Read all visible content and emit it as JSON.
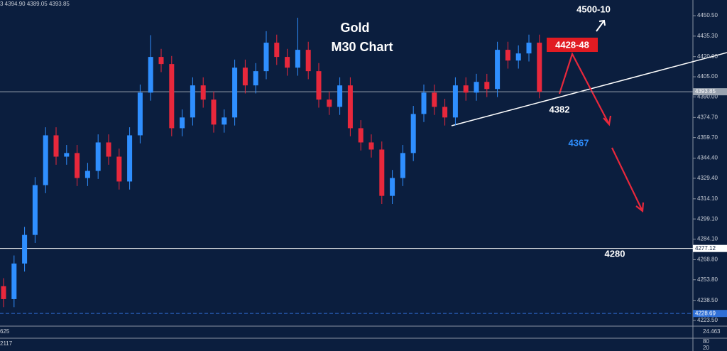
{
  "chart_data": {
    "type": "candlestick",
    "header": "3 4394.90 4389.05 4393.85",
    "title": "Gold",
    "subtitle": "M30 Chart",
    "annotations": [
      "4500-10",
      "4428-48",
      "4382",
      "4367",
      "4280"
    ],
    "up_color": "#2f8fff",
    "down_color": "#e8283c",
    "ylim": [
      4219.26,
      4462.2
    ],
    "yticks": [
      {
        "value": 4450.5,
        "label": "4450.50"
      },
      {
        "value": 4435.3,
        "label": "4435.30"
      },
      {
        "value": 4420,
        "label": "4420.00"
      },
      {
        "value": 4405,
        "label": "4405.00"
      },
      {
        "value": 4390,
        "label": "4390.00"
      },
      {
        "value": 4374.7,
        "label": "4374.70"
      },
      {
        "value": 4359.7,
        "label": "4359.70"
      },
      {
        "value": 4344.4,
        "label": "4344.40"
      },
      {
        "value": 4329.4,
        "label": "4329.40"
      },
      {
        "value": 4314.1,
        "label": "4314.10"
      },
      {
        "value": 4299.1,
        "label": "4299.10"
      },
      {
        "value": 4284.1,
        "label": "4284.10"
      },
      {
        "value": 4268.8,
        "label": "4268.80"
      },
      {
        "value": 4253.8,
        "label": "4253.80"
      },
      {
        "value": 4238.5,
        "label": "4238.50"
      },
      {
        "value": 4223.5,
        "label": "4223.50"
      }
    ],
    "levels": [
      {
        "value": 4393.85,
        "label": "4393.85",
        "color": "#9aa3b0"
      },
      {
        "value": 4277.12,
        "label": "4277.12",
        "color": "#ffffff"
      },
      {
        "value": 4228.69,
        "label": "4228.69",
        "color": "#2f6fd6"
      }
    ],
    "open": [
      4249.0,
      4239.4,
      4265.9,
      4287.2,
      4324.3,
      4361.4,
      4345.5,
      4348.2,
      4329.6,
      4334.9,
      4356.1,
      4345.5,
      4327.0,
      4361.4,
      4393.2,
      4419.8,
      4414.5,
      4366.7,
      4374.7,
      4398.6,
      4388.0,
      4369.4,
      4374.7,
      4411.8,
      4398.6,
      4409.2,
      4430.4,
      4419.8,
      4411.8,
      4425.1,
      4409.2,
      4388.0,
      4382.6,
      4398.6,
      4366.7,
      4356.1,
      4350.8,
      4316.3,
      4329.6,
      4348.2,
      4377.3,
      4393.2,
      4382.6,
      4374.7,
      4398.6,
      4393.2,
      4401.2,
      4395.9,
      4425.1,
      4417.1,
      4422.4,
      4430.4
    ],
    "high": [
      4255.0,
      4271.9,
      4293.2,
      4330.3,
      4367.4,
      4367.4,
      4354.2,
      4354.2,
      4340.9,
      4362.1,
      4362.1,
      4351.5,
      4367.4,
      4399.2,
      4436.0,
      4425.8,
      4420.5,
      4380.7,
      4404.6,
      4404.6,
      4394.0,
      4380.7,
      4417.8,
      4417.8,
      4415.2,
      4439.0,
      4436.4,
      4425.8,
      4449.0,
      4431.1,
      4415.2,
      4394.0,
      4404.6,
      4404.6,
      4372.7,
      4362.1,
      4356.8,
      4335.6,
      4354.2,
      4383.3,
      4399.2,
      4399.2,
      4388.6,
      4404.6,
      4404.6,
      4407.2,
      4407.2,
      4431.1,
      4431.1,
      4428.4,
      4436.4,
      4436.4
    ],
    "low": [
      4233.4,
      4233.4,
      4259.9,
      4281.2,
      4318.3,
      4339.5,
      4339.5,
      4323.6,
      4323.6,
      4328.9,
      4339.5,
      4321.0,
      4321.0,
      4355.4,
      4387.2,
      4408.5,
      4360.7,
      4360.7,
      4368.7,
      4382.0,
      4363.4,
      4363.4,
      4368.7,
      4392.6,
      4392.6,
      4403.2,
      4413.8,
      4405.8,
      4405.8,
      4403.2,
      4382.0,
      4376.6,
      4376.6,
      4360.7,
      4350.1,
      4344.8,
      4310.3,
      4310.3,
      4323.6,
      4342.2,
      4371.3,
      4376.6,
      4368.7,
      4368.7,
      4387.2,
      4387.2,
      4389.9,
      4389.9,
      4411.1,
      4411.1,
      4416.4,
      4389.0
    ],
    "close": [
      4239.4,
      4265.9,
      4287.2,
      4324.3,
      4361.4,
      4345.5,
      4348.2,
      4329.6,
      4334.9,
      4356.1,
      4345.5,
      4327.0,
      4361.4,
      4393.2,
      4419.8,
      4414.5,
      4366.7,
      4374.7,
      4398.6,
      4388.0,
      4369.4,
      4374.7,
      4411.8,
      4398.6,
      4409.2,
      4430.4,
      4419.8,
      4411.8,
      4425.1,
      4409.2,
      4388.0,
      4382.6,
      4398.6,
      4366.7,
      4356.1,
      4350.8,
      4316.3,
      4329.6,
      4348.2,
      4377.3,
      4393.2,
      4382.6,
      4374.7,
      4398.6,
      4393.2,
      4401.2,
      4395.9,
      4425.1,
      4417.1,
      4422.4,
      4430.4,
      4393.8
    ],
    "indicator_labels": [
      "625",
      "24.463",
      "2117",
      "80",
      "20"
    ]
  }
}
